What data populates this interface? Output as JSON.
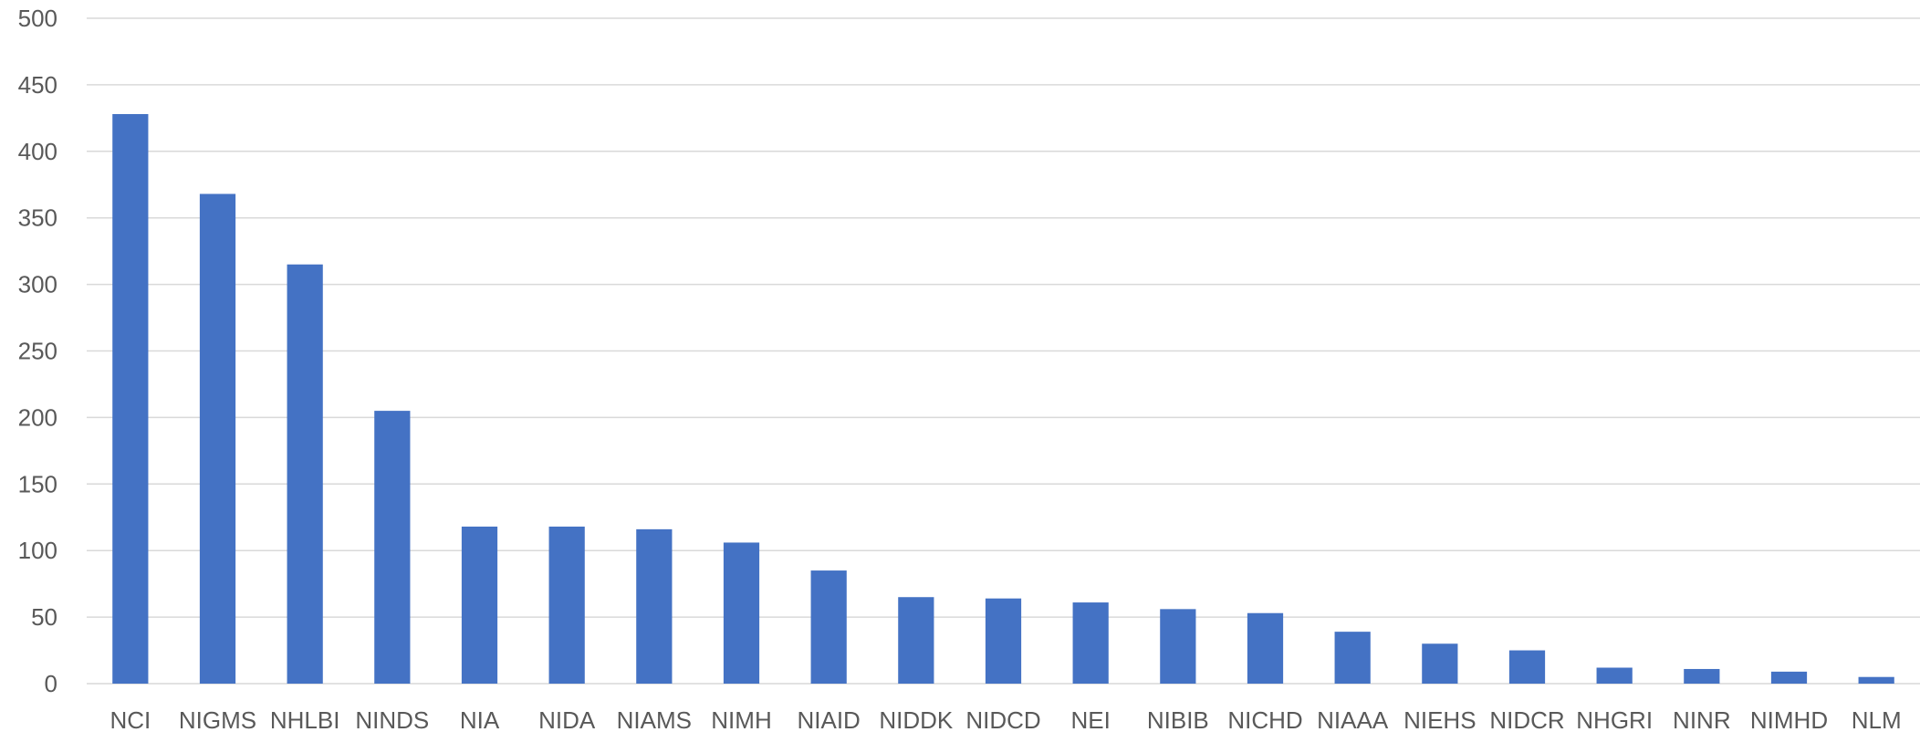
{
  "chart_data": {
    "type": "bar",
    "title": "",
    "xlabel": "",
    "ylabel": "",
    "ylim": [
      0,
      500
    ],
    "yticks": [
      0,
      50,
      100,
      150,
      200,
      250,
      300,
      350,
      400,
      450,
      500
    ],
    "grid": true,
    "legend": "none",
    "bar_color": "#4472c4",
    "categories": [
      "NCI",
      "NIGMS",
      "NHLBI",
      "NINDS",
      "NIA",
      "NIDA",
      "NIAMS",
      "NIMH",
      "NIAID",
      "NIDDK",
      "NIDCD",
      "NEI",
      "NIBIB",
      "NICHD",
      "NIAAA",
      "NIEHS",
      "NIDCR",
      "NHGRI",
      "NINR",
      "NIMHD",
      "NLM"
    ],
    "values": [
      428,
      368,
      315,
      205,
      118,
      118,
      116,
      106,
      85,
      65,
      64,
      61,
      56,
      53,
      39,
      30,
      25,
      12,
      11,
      9,
      5
    ]
  }
}
